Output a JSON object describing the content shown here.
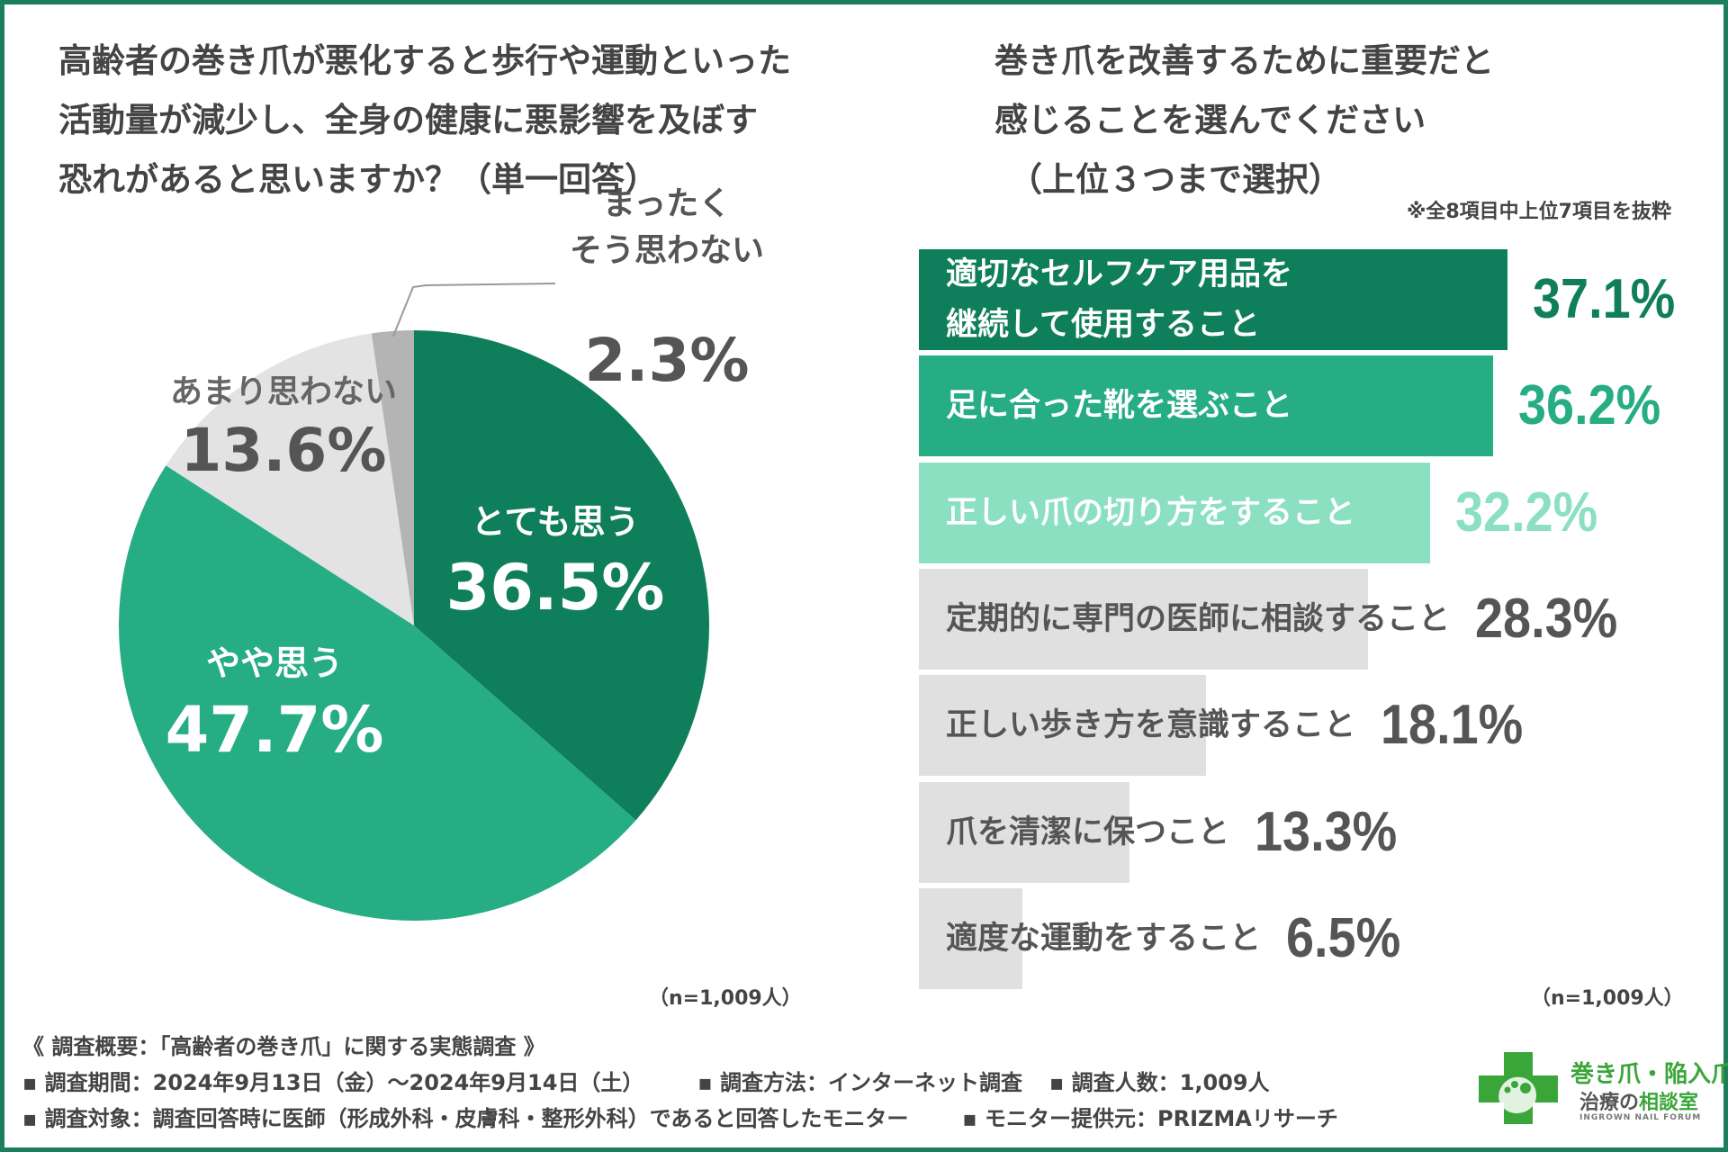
{
  "left_title": {
    "line1": "高齢者の巻き爪が悪化すると歩行や運動といった",
    "line2": "活動量が減少し、全身の健康に悪影響を及ぼす",
    "line3": "恐れがあると思いますか？（単一回答）"
  },
  "right_title": {
    "line1": "巻き爪を改善するために重要だと",
    "line2": "感じることを選んでください",
    "line3": "（上位３つまで選択）"
  },
  "right_note": "※全8項目中上位7項目を抜粋",
  "pie_n": "（n=1,009人）",
  "bar_n": "（n=1,009人）",
  "chart_data": [
    {
      "type": "pie",
      "title": "高齢者の巻き爪が悪化すると歩行や運動といった活動量が減少し、全身の健康に悪影響を及ぼす恐れがあると思いますか？（単一回答）",
      "slices": [
        {
          "label_lines": [
            "とても思う"
          ],
          "value": 36.5,
          "display": "36.5%",
          "color": "#0f7e5a",
          "label_color": "#ffffff",
          "value_color": "#ffffff"
        },
        {
          "label_lines": [
            "やや思う"
          ],
          "value": 47.7,
          "display": "47.7%",
          "color": "#26ad84",
          "label_color": "#ffffff",
          "value_color": "#ffffff"
        },
        {
          "label_lines": [
            "あまり思わない"
          ],
          "value": 13.6,
          "display": "13.6%",
          "color": "#e3e3e3",
          "label_color": "#666666",
          "value_color": "#555555"
        },
        {
          "label_lines": [
            "まったく",
            "そう思わない"
          ],
          "value": 2.3,
          "display": "2.3%",
          "color": "#b4b4b4",
          "label_color": "#555555",
          "value_color": "#555555"
        }
      ],
      "n": "n=1,009人"
    },
    {
      "type": "bar",
      "orientation": "horizontal",
      "title": "巻き爪を改善するために重要だと感じることを選んでください（上位３つまで選択）",
      "unit": "%",
      "xlim": [
        0,
        37.1
      ],
      "bars": [
        {
          "label_lines": [
            "適切なセルフケア用品を",
            "継続して使用すること"
          ],
          "value": 37.1,
          "display": "37.1%",
          "color": "#0f7e5a",
          "label_color": "#ffffff",
          "value_color": "#0f7e5a"
        },
        {
          "label_lines": [
            "足に合った靴を選ぶこと"
          ],
          "value": 36.2,
          "display": "36.2%",
          "color": "#26ad84",
          "label_color": "#ffffff",
          "value_color": "#26ad84"
        },
        {
          "label_lines": [
            "正しい爪の切り方をすること"
          ],
          "value": 32.2,
          "display": "32.2%",
          "color": "#8be0c2",
          "label_color": "#ffffff",
          "value_color": "#8be0c2"
        },
        {
          "label_lines": [
            "定期的に専門の医師に相談すること"
          ],
          "value": 28.3,
          "display": "28.3%",
          "color": "#e0e0e0",
          "label_color": "#555555",
          "value_color": "#555555"
        },
        {
          "label_lines": [
            "正しい歩き方を意識すること"
          ],
          "value": 18.1,
          "display": "18.1%",
          "color": "#e0e0e0",
          "label_color": "#555555",
          "value_color": "#555555"
        },
        {
          "label_lines": [
            "爪を清潔に保つこと"
          ],
          "value": 13.3,
          "display": "13.3%",
          "color": "#e0e0e0",
          "label_color": "#555555",
          "value_color": "#555555"
        },
        {
          "label_lines": [
            "適度な運動をすること"
          ],
          "value": 6.5,
          "display": "6.5%",
          "color": "#e0e0e0",
          "label_color": "#555555",
          "value_color": "#555555"
        }
      ],
      "n": "n=1,009人"
    }
  ],
  "footer": {
    "heading": "《 調査概要：「高齢者の巻き爪」に関する実態調査 》",
    "period": "▪ 調査期間：2024年9月13日（金）〜2024年9月14日（土）",
    "method": "▪ 調査方法：インターネット調査",
    "count": "▪ 調査人数：1,009人",
    "target": "▪ 調査対象：調査回答時に医師（形成外科・皮膚科・整形外科）であると回答したモニター",
    "provider": "▪ モニター提供元：PRIZMAリサーチ"
  },
  "logo": {
    "line1": "巻き爪・陥入爪",
    "line2a": "治療の",
    "line2b": "相談室",
    "line3": "INGROWN NAIL FORUM",
    "color": "#3aa63a"
  }
}
